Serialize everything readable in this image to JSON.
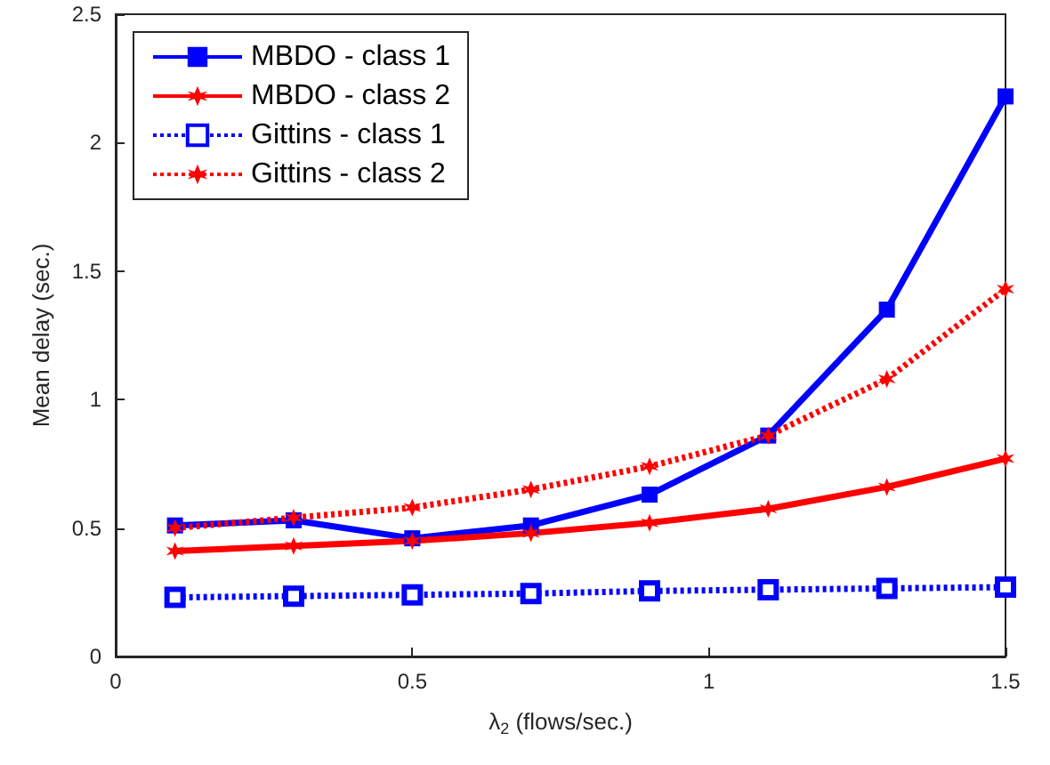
{
  "chart_data": {
    "type": "line",
    "xlabel": "λ$_{2}$ (flows/sec.)",
    "ylabel": "Mean delay (sec.)",
    "x": [
      0.1,
      0.3,
      0.5,
      0.7,
      0.9,
      1.1,
      1.3,
      1.5
    ],
    "xlim": [
      0,
      1.5
    ],
    "xticks": [
      0,
      0.5,
      1,
      1.5
    ],
    "ylim": [
      0,
      2.5
    ],
    "yticks": [
      0,
      0.5,
      1,
      1.5,
      2,
      2.5
    ],
    "grid": false,
    "legend": "top left",
    "series": [
      {
        "name": "MBDO - class 1",
        "color": "#0000ff",
        "marker": "square",
        "line_style": "solid",
        "values": [
          0.51,
          0.53,
          0.46,
          0.51,
          0.63,
          0.86,
          1.35,
          2.18
        ]
      },
      {
        "name": "MBDO - class 2",
        "color": "#ff0000",
        "marker": "cross",
        "line_style": "solid",
        "values": [
          0.41,
          0.43,
          0.45,
          0.48,
          0.52,
          0.575,
          0.66,
          0.77
        ]
      },
      {
        "name": "Gittins - class 1",
        "color": "#0000ff",
        "marker": "square",
        "line_style": "dotted",
        "values": [
          0.23,
          0.235,
          0.24,
          0.245,
          0.255,
          0.26,
          0.265,
          0.27
        ]
      },
      {
        "name": "Gittins - class 2",
        "color": "#ff0000",
        "marker": "cross",
        "line_style": "dotted",
        "values": [
          0.5,
          0.54,
          0.58,
          0.65,
          0.74,
          0.86,
          1.08,
          1.43
        ]
      }
    ]
  }
}
